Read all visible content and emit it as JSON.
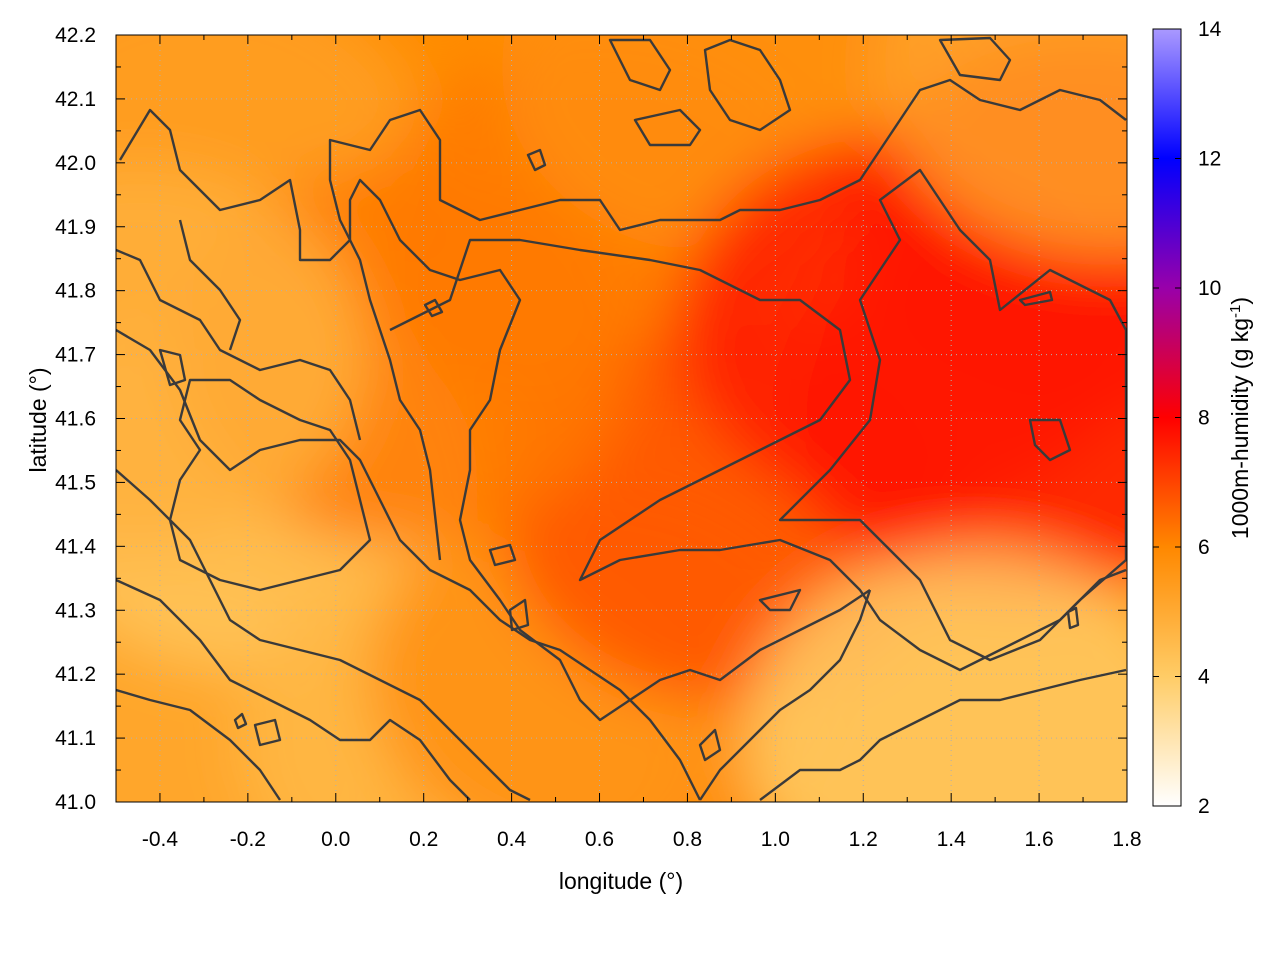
{
  "chart_data": {
    "type": "heatmap",
    "xlabel": "longitude (°)",
    "ylabel": "latitude (°)",
    "colorbar_label": "1000m-humidity (g kg",
    "colorbar_label_sup": "-1",
    "colorbar_label_end": ")",
    "xlim": [
      -0.5,
      1.8
    ],
    "ylim": [
      41.0,
      42.2
    ],
    "clim": [
      2,
      14
    ],
    "x_ticks": [
      -0.4,
      -0.2,
      0.0,
      0.2,
      0.4,
      0.6,
      0.8,
      1.0,
      1.2,
      1.4,
      1.6,
      1.8
    ],
    "x_tick_labels": [
      "-0.4",
      "-0.2",
      "0.0",
      "0.2",
      "0.4",
      "0.6",
      "0.8",
      "1.0",
      "1.2",
      "1.4",
      "1.6",
      "1.8"
    ],
    "y_ticks": [
      41.0,
      41.1,
      41.2,
      41.3,
      41.4,
      41.5,
      41.6,
      41.7,
      41.8,
      41.9,
      42.0,
      42.1,
      42.2
    ],
    "y_tick_labels": [
      "41.0",
      "41.1",
      "41.2",
      "41.3",
      "41.4",
      "41.5",
      "41.6",
      "41.7",
      "41.8",
      "41.9",
      "42.0",
      "42.1",
      "42.2"
    ],
    "colorbar_ticks": [
      2,
      4,
      6,
      8,
      10,
      12,
      14
    ],
    "colorbar_tick_labels": [
      "2",
      "4",
      "6",
      "8",
      "10",
      "12",
      "14"
    ],
    "colormap": [
      {
        "value": 2,
        "color": "#ffffff"
      },
      {
        "value": 4,
        "color": "#ffcc66"
      },
      {
        "value": 6,
        "color": "#ff8800"
      },
      {
        "value": 8,
        "color": "#ff0000"
      },
      {
        "value": 10,
        "color": "#9900aa"
      },
      {
        "value": 12,
        "color": "#0000ff"
      },
      {
        "value": 14,
        "color": "#aa99ff"
      }
    ],
    "contour_levels": [
      4.5,
      5.5,
      6.5
    ],
    "grid": true,
    "field_samples": [
      {
        "x": -0.4,
        "y": 41.05,
        "v": 5.0
      },
      {
        "x": -0.2,
        "y": 41.5,
        "v": 4.2
      },
      {
        "x": -0.3,
        "y": 42.0,
        "v": 5.3
      },
      {
        "x": 0.3,
        "y": 41.1,
        "v": 4.6
      },
      {
        "x": 0.6,
        "y": 41.2,
        "v": 5.8
      },
      {
        "x": 0.6,
        "y": 41.9,
        "v": 6.2
      },
      {
        "x": 0.9,
        "y": 42.15,
        "v": 5.8
      },
      {
        "x": 0.9,
        "y": 41.45,
        "v": 6.8
      },
      {
        "x": 1.3,
        "y": 41.75,
        "v": 7.6
      },
      {
        "x": 1.7,
        "y": 41.9,
        "v": 7.8
      },
      {
        "x": 1.55,
        "y": 41.6,
        "v": 7.7
      },
      {
        "x": 1.45,
        "y": 41.1,
        "v": 4.0
      },
      {
        "x": 1.75,
        "y": 42.15,
        "v": 5.2
      },
      {
        "x": 0.15,
        "y": 41.7,
        "v": 6.2
      },
      {
        "x": -0.45,
        "y": 41.7,
        "v": 4.8
      }
    ]
  }
}
